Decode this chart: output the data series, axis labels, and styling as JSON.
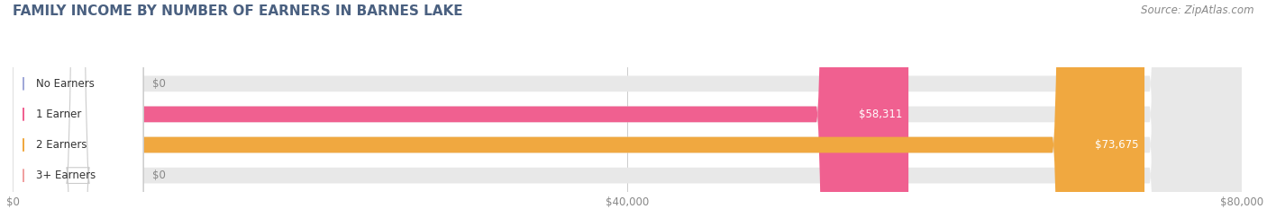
{
  "title": "FAMILY INCOME BY NUMBER OF EARNERS IN BARNES LAKE",
  "source": "Source: ZipAtlas.com",
  "categories": [
    "No Earners",
    "1 Earner",
    "2 Earners",
    "3+ Earners"
  ],
  "values": [
    0,
    58311,
    73675,
    0
  ],
  "bar_colors": [
    "#a0a8d8",
    "#f06090",
    "#f0a840",
    "#f0a0a0"
  ],
  "background_color": "#ffffff",
  "xlim": [
    0,
    80000
  ],
  "xticks": [
    0,
    40000,
    80000
  ],
  "xtick_labels": [
    "$0",
    "$40,000",
    "$80,000"
  ],
  "value_labels": [
    "$0",
    "$58,311",
    "$73,675",
    "$0"
  ],
  "title_color": "#4a6080",
  "title_fontsize": 11,
  "bar_height": 0.52,
  "source_fontsize": 8.5,
  "source_color": "#888888"
}
